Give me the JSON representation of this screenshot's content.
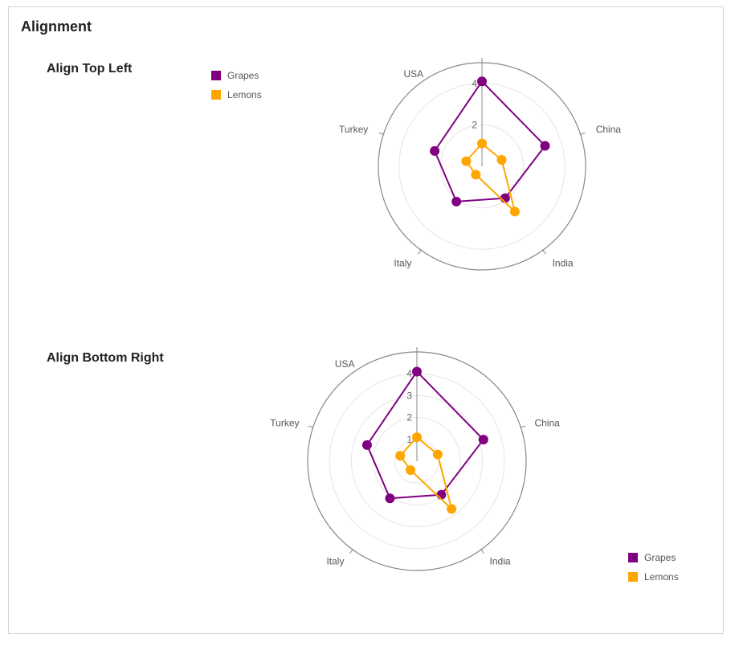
{
  "page": {
    "title": "Alignment"
  },
  "colors": {
    "grapes": "#800080",
    "lemons": "#FFA500"
  },
  "chart_data": [
    {
      "type": "radar",
      "section_title": "Align Top Left",
      "legend_position": "top-left",
      "axes": [
        "USA",
        "China",
        "India",
        "Italy",
        "Turkey"
      ],
      "radial_ticks": [
        "2",
        "4"
      ],
      "ylim": [
        0,
        5
      ],
      "grid": true,
      "series": [
        {
          "name": "Grapes",
          "color": "#800080",
          "values": [
            4.1,
            3.2,
            1.9,
            2.1,
            2.4
          ]
        },
        {
          "name": "Lemons",
          "color": "#FFA500",
          "values": [
            1.1,
            1.0,
            2.7,
            0.5,
            0.8
          ]
        }
      ]
    },
    {
      "type": "radar",
      "section_title": "Align Bottom Right",
      "legend_position": "bottom-right",
      "axes": [
        "USA",
        "China",
        "India",
        "Italy",
        "Turkey"
      ],
      "radial_ticks": [
        "1",
        "2",
        "3",
        "4"
      ],
      "ylim": [
        0,
        5
      ],
      "grid": true,
      "series": [
        {
          "name": "Grapes",
          "color": "#800080",
          "values": [
            4.1,
            3.2,
            1.9,
            2.1,
            2.4
          ]
        },
        {
          "name": "Lemons",
          "color": "#FFA500",
          "values": [
            1.1,
            1.0,
            2.7,
            0.5,
            0.8
          ]
        }
      ]
    }
  ]
}
